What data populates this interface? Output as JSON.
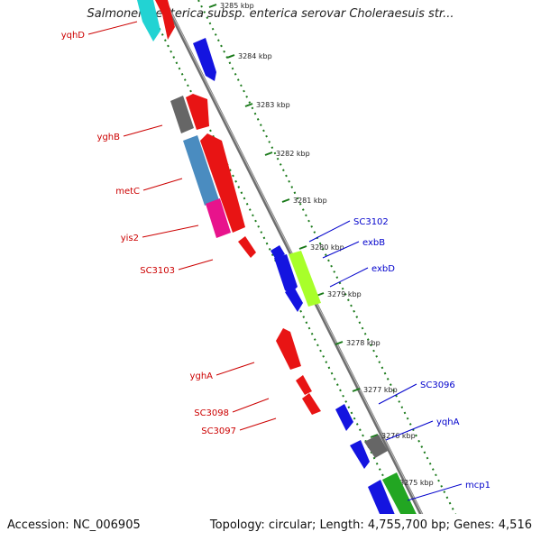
{
  "title": "Salmonella enterica subsp. enterica serovar Choleraesuis str...",
  "footer": {
    "accession": "Accession: NC_006905",
    "summary": "Topology: circular; Length: 4,755,700 bp; Genes: 4,516"
  },
  "colors": {
    "backbone": "#8c8c8c",
    "ruler": "#1a7a1a",
    "forward_label": "#0000cc",
    "reverse_label": "#cc0000"
  },
  "ruler": {
    "ticks": [
      {
        "label": "3285 kbp"
      },
      {
        "label": "3284 kbp"
      },
      {
        "label": "3283 kbp"
      },
      {
        "label": "3282 kbp"
      },
      {
        "label": "3281 kbp"
      },
      {
        "label": "3280 kbp"
      },
      {
        "label": "3279 kbp"
      },
      {
        "label": "3278 kbp"
      },
      {
        "label": "3277 kbp"
      },
      {
        "label": "3276 kbp"
      },
      {
        "label": "3275 kbp"
      }
    ]
  },
  "forward_labels": [
    "SC3102",
    "exbB",
    "exbD",
    "SC3096",
    "yqhA",
    "mcp1"
  ],
  "reverse_labels": [
    "yqhD",
    "yghB",
    "metC",
    "yis2",
    "SC3103",
    "yghA",
    "SC3098",
    "SC3097"
  ]
}
